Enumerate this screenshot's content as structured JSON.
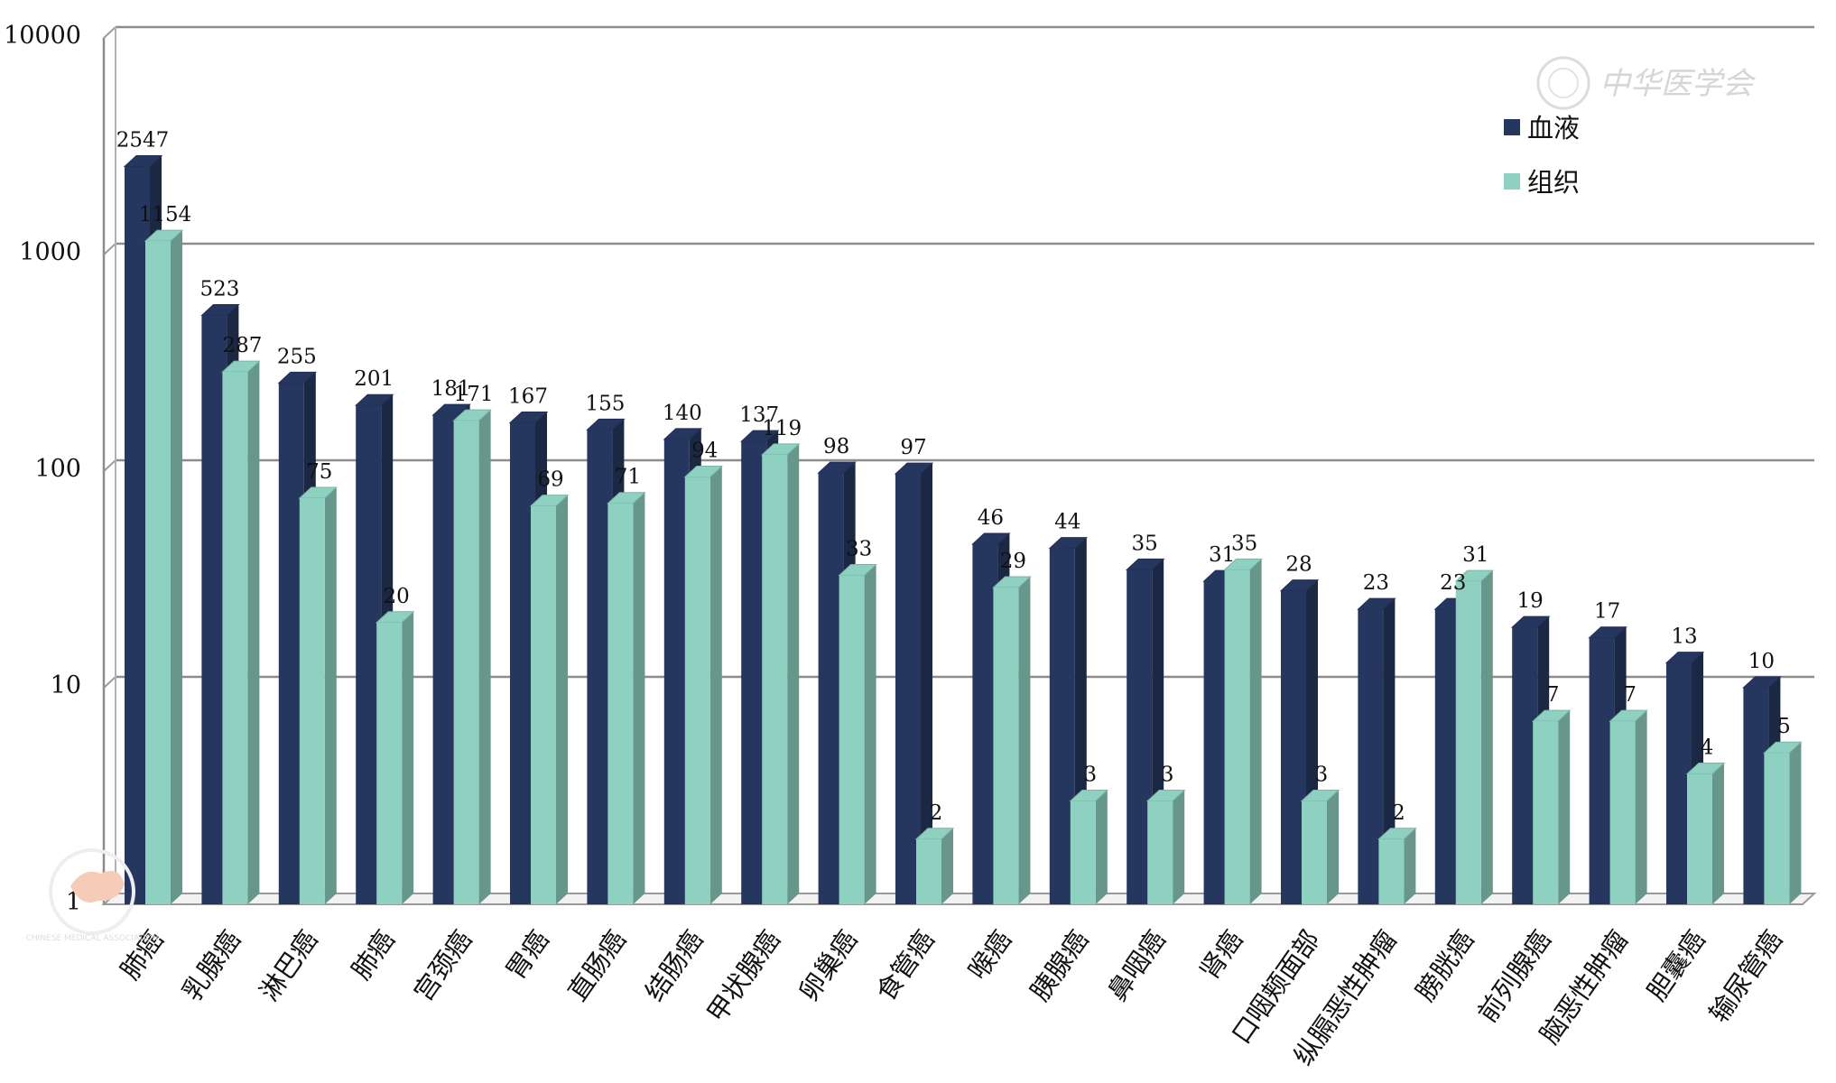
{
  "chart_data": {
    "type": "bar",
    "scale": "log",
    "ylim": [
      1,
      10000
    ],
    "yticks": [
      "1",
      "10",
      "100",
      "1000",
      "10000"
    ],
    "grid": true,
    "legend_position": "top-right",
    "categories": [
      "肺癌",
      "乳腺癌",
      "淋巴癌",
      "肺癌",
      "宫颈癌",
      "胃癌",
      "直肠癌",
      "结肠癌",
      "甲状腺癌",
      "卵巢癌",
      "食管癌",
      "喉癌",
      "胰腺癌",
      "鼻咽癌",
      "肾癌",
      "口咽颊面部",
      "纵膈恶性肿瘤",
      "膀胱癌",
      "前列腺癌",
      "脑恶性肿瘤",
      "胆囊癌",
      "输尿管癌"
    ],
    "series": [
      {
        "name": "血液",
        "color": "#26375f",
        "values": [
          2547,
          523,
          255,
          201,
          181,
          167,
          155,
          140,
          137,
          98,
          97,
          46,
          44,
          35,
          31,
          28,
          23,
          23,
          19,
          17,
          13,
          10
        ]
      },
      {
        "name": "组织",
        "color": "#8fd1c1",
        "values": [
          1154,
          287,
          75,
          20,
          171,
          69,
          71,
          94,
          119,
          33,
          2,
          29,
          3,
          3,
          35,
          3,
          2,
          31,
          7,
          7,
          4,
          5
        ]
      }
    ]
  },
  "watermark": {
    "text": "中华医学会",
    "seal_text": "CHINESE MEDICAL ASSOCIATION"
  }
}
